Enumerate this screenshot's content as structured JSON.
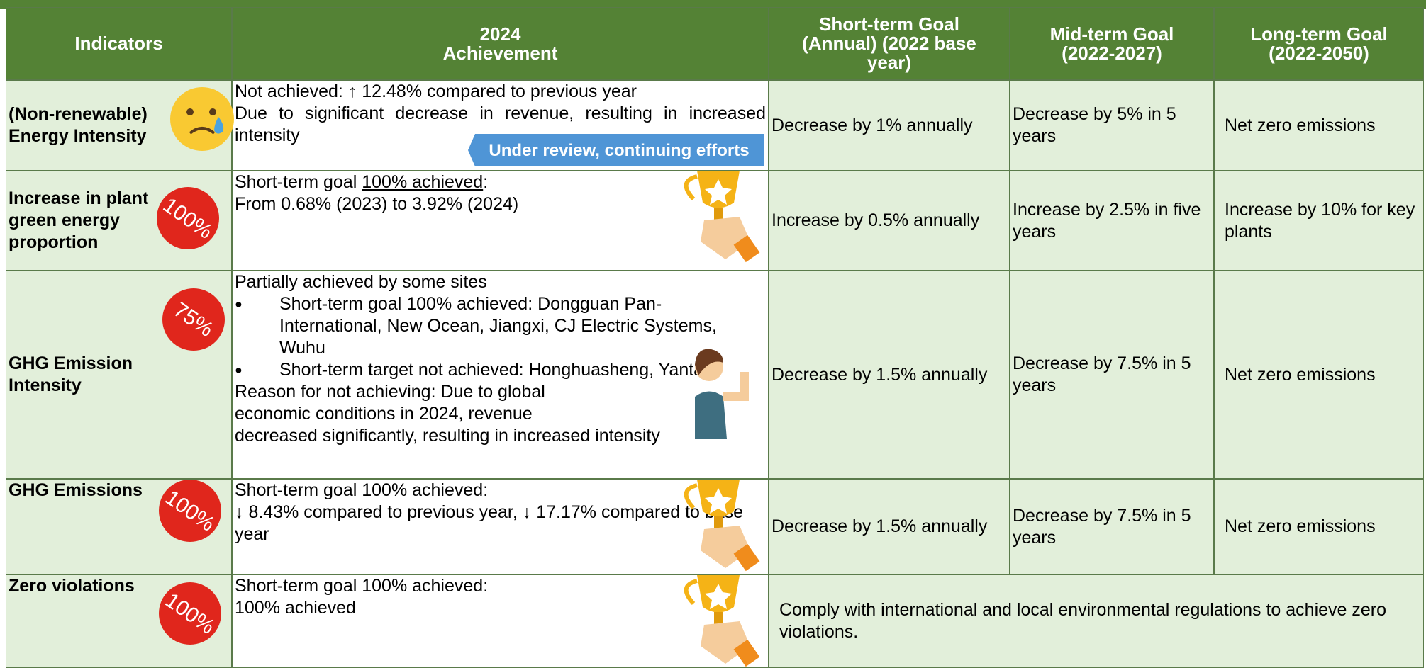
{
  "header": {
    "columns": [
      {
        "lines": [
          "Indicators"
        ]
      },
      {
        "lines": [
          "2024",
          "Achievement"
        ]
      },
      {
        "lines": [
          "Short-term Goal",
          "(Annual) (2022 base",
          "year)"
        ]
      },
      {
        "lines": [
          "Mid-term Goal",
          "(2022-2027)"
        ]
      },
      {
        "lines": [
          "Long-term Goal",
          "(2022-2050)"
        ]
      }
    ]
  },
  "tag": "Under review, continuing efforts",
  "rows": [
    {
      "indicator": "(Non-renewable) Energy Intensity",
      "achievement": [
        "Not achieved: ↑ 12.48% compared to previous year",
        "Due to significant decrease in revenue, resulting in increased intensity"
      ],
      "short": "Decrease by 1% annually",
      "mid": "Decrease by 5% in 5 years",
      "long": "Net zero emissions"
    },
    {
      "indicator": "Increase in plant green energy proportion",
      "badge": "100%",
      "achievement_parts": [
        "Short-term goal ",
        "100% achieved",
        ":"
      ],
      "achievement": [
        "From 0.68% (2023) to 3.92% (2024)"
      ],
      "short": "Increase by 0.5% annually",
      "mid": "Increase by 2.5% in five years",
      "long": "Increase by 10% for key plants"
    },
    {
      "indicator": "GHG Emission Intensity",
      "badge": "75%",
      "achievement": [
        "Partially achieved by some sites"
      ],
      "bullets": [
        "Short-term goal 100% achieved: Dongguan Pan-International, New Ocean, Jiangxi, CJ Electric Systems, Wuhu",
        "Short-term target not achieved: Honghuasheng, Yantai"
      ],
      "reason": [
        "Reason for not achieving: Due to global",
        "economic conditions in 2024, revenue",
        "decreased significantly, resulting in increased intensity"
      ],
      "short": "Decrease by 1.5% annually",
      "mid": "Decrease by 7.5% in 5 years",
      "long": "Net zero emissions"
    },
    {
      "indicator": "GHG Emissions",
      "badge": "100%",
      "achievement": [
        "Short-term goal 100% achieved:",
        "↓ 8.43% compared to previous year, ↓ 17.17% compared to base year"
      ],
      "short": "Decrease by 1.5% annually",
      "mid": "Decrease by 7.5% in 5 years",
      "long": "Net zero emissions"
    },
    {
      "indicator": "Zero violations",
      "badge": "100%",
      "achievement": [
        "Short-term goal 100% achieved:",
        "100% achieved"
      ],
      "merged": "Comply with international and local environmental regulations to achieve zero violations."
    }
  ]
}
